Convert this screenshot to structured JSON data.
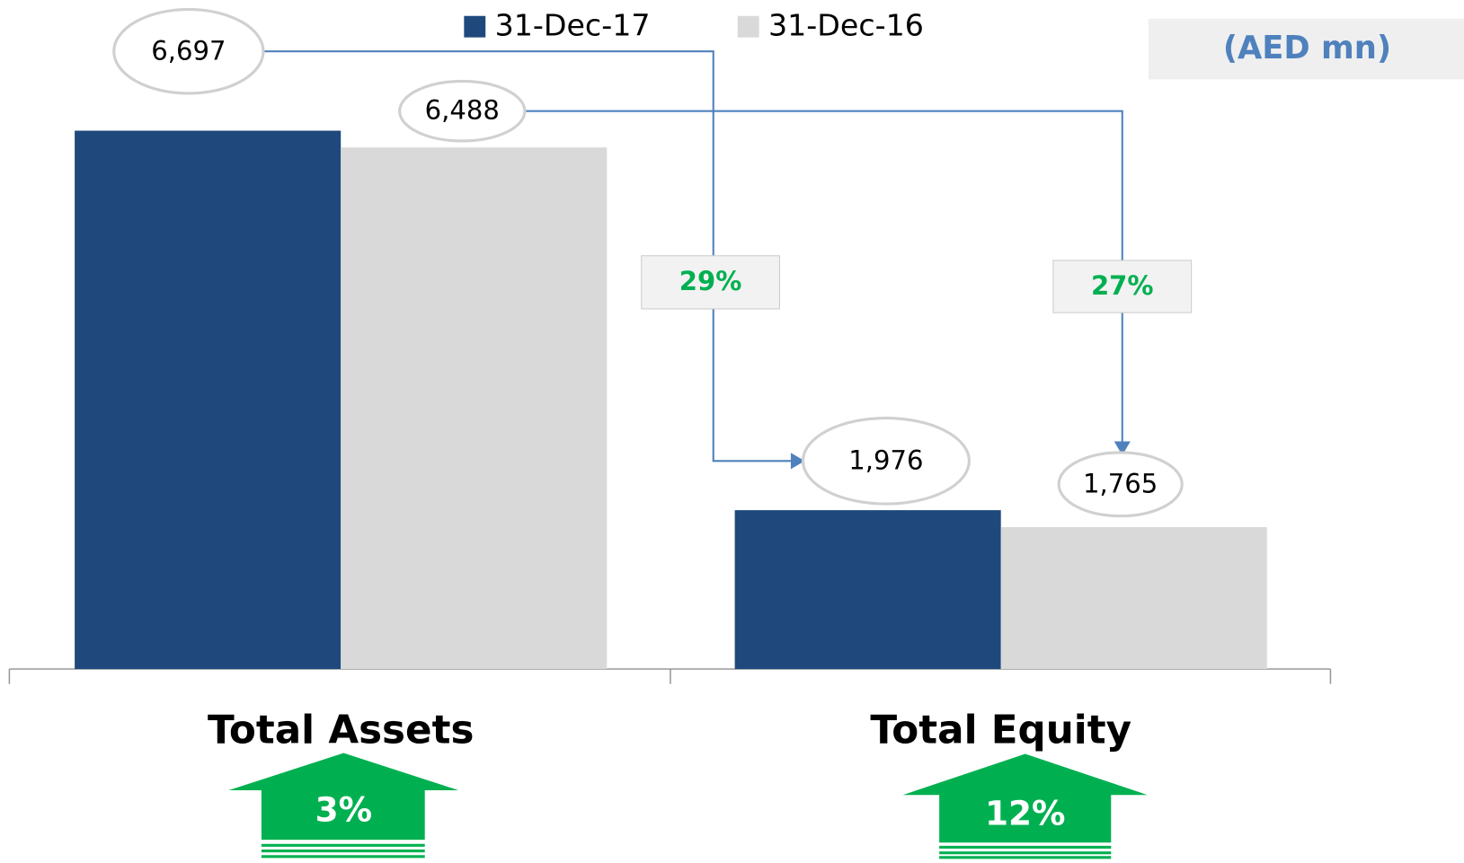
{
  "chart_data": {
    "type": "bar",
    "categories": [
      "Total Assets",
      "Total Equity"
    ],
    "series": [
      {
        "name": "31-Dec-17",
        "color": "#1f497d",
        "values": [
          6697,
          1976
        ],
        "value_labels": [
          "6,697",
          "1,976"
        ]
      },
      {
        "name": "31-Dec-16",
        "color": "#d9d9d9",
        "values": [
          6488,
          1765
        ],
        "value_labels": [
          "6,488",
          "1,765"
        ]
      }
    ],
    "unit_label": "(AED mn)",
    "share_labels": [
      "29%",
      "27%"
    ],
    "growth_labels": [
      "3%",
      "12%"
    ],
    "legend": "top"
  }
}
